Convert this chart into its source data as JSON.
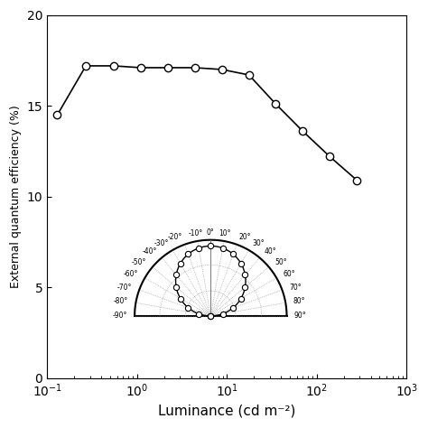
{
  "ylabel": "External quantum efficiency (%)",
  "xlabel": "Luminance (cd m⁻²)",
  "ylim": [
    0,
    20
  ],
  "yticks": [
    0,
    5,
    10,
    15,
    20
  ],
  "background_color": "#ffffff",
  "lum": [
    0.13,
    0.27,
    0.55,
    1.1,
    2.2,
    4.4,
    8.8,
    17.6,
    35,
    70,
    140,
    280
  ],
  "eqe": [
    14.5,
    17.2,
    17.2,
    17.1,
    17.1,
    17.1,
    17.0,
    16.7,
    15.1,
    13.6,
    12.2,
    10.9
  ],
  "line_color": "#000000",
  "marker_color": "#ffffff",
  "marker_edge_color": "#000000",
  "polar_label_angles": [
    -90,
    -80,
    -70,
    -60,
    -50,
    -40,
    -30,
    -20,
    -10,
    0,
    10,
    20,
    30,
    40,
    50,
    60,
    70,
    80,
    90
  ],
  "polar_label_texts": [
    "-90°",
    "-80°",
    "-70°",
    "-60°",
    "-50°",
    "-40°",
    "-30°",
    "-20°",
    "-10°",
    "0°",
    "10°",
    "20°",
    "30°",
    "40°",
    "50°",
    "60°",
    "70°",
    "80°",
    "90°"
  ]
}
